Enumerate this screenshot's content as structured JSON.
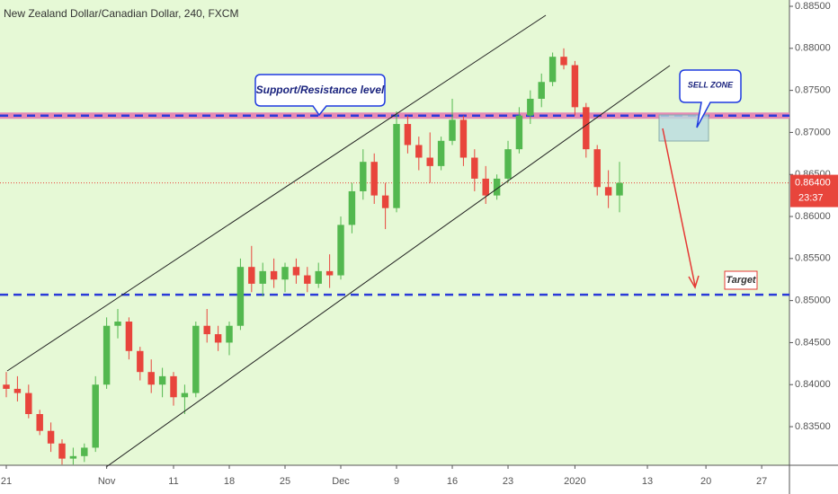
{
  "chart_data": {
    "type": "candlestick",
    "title": "New Zealand Dollar/Canadian Dollar, 240, FXCM",
    "x": [
      0,
      1,
      2,
      3,
      4,
      5,
      6,
      7,
      8,
      9,
      10,
      11,
      12,
      13,
      14,
      15,
      16,
      17,
      18,
      19,
      20,
      21,
      22,
      23,
      24,
      25,
      26,
      27,
      28,
      29,
      30,
      31,
      32,
      33,
      34,
      35,
      36,
      37,
      38,
      39,
      40,
      41,
      42,
      43,
      44,
      45,
      46,
      47,
      48,
      49,
      50,
      51,
      52,
      53,
      54,
      55
    ],
    "open": [
      0.84,
      0.8395,
      0.839,
      0.8365,
      0.8345,
      0.833,
      0.8312,
      0.8315,
      0.8325,
      0.84,
      0.847,
      0.8475,
      0.844,
      0.8415,
      0.84,
      0.841,
      0.8385,
      0.839,
      0.847,
      0.846,
      0.845,
      0.847,
      0.854,
      0.852,
      0.8535,
      0.8525,
      0.854,
      0.853,
      0.852,
      0.8535,
      0.853,
      0.859,
      0.863,
      0.8665,
      0.8625,
      0.861,
      0.871,
      0.8685,
      0.867,
      0.866,
      0.869,
      0.8715,
      0.867,
      0.8645,
      0.8625,
      0.8645,
      0.868,
      0.872,
      0.874,
      0.876,
      0.879,
      0.878,
      0.873,
      0.868,
      0.8635,
      0.8625
    ],
    "high": [
      0.8415,
      0.841,
      0.84,
      0.837,
      0.8355,
      0.8335,
      0.8325,
      0.833,
      0.841,
      0.848,
      0.849,
      0.848,
      0.8445,
      0.843,
      0.842,
      0.8415,
      0.84,
      0.8475,
      0.849,
      0.847,
      0.8475,
      0.855,
      0.8565,
      0.8545,
      0.855,
      0.8545,
      0.855,
      0.854,
      0.8545,
      0.8555,
      0.86,
      0.864,
      0.868,
      0.8675,
      0.864,
      0.8725,
      0.872,
      0.8695,
      0.87,
      0.8695,
      0.874,
      0.872,
      0.868,
      0.866,
      0.865,
      0.869,
      0.873,
      0.875,
      0.877,
      0.8795,
      0.88,
      0.8785,
      0.8735,
      0.8685,
      0.8655,
      0.8665
    ],
    "low": [
      0.8385,
      0.838,
      0.836,
      0.834,
      0.832,
      0.8305,
      0.8305,
      0.8308,
      0.832,
      0.8395,
      0.8455,
      0.843,
      0.8405,
      0.839,
      0.8385,
      0.8375,
      0.8365,
      0.8385,
      0.845,
      0.844,
      0.8435,
      0.8465,
      0.851,
      0.8505,
      0.8515,
      0.851,
      0.852,
      0.851,
      0.8515,
      0.8515,
      0.8525,
      0.858,
      0.862,
      0.8615,
      0.8585,
      0.8605,
      0.8675,
      0.8655,
      0.864,
      0.8655,
      0.8685,
      0.866,
      0.863,
      0.8615,
      0.862,
      0.864,
      0.8675,
      0.871,
      0.873,
      0.8755,
      0.8775,
      0.872,
      0.867,
      0.8625,
      0.861,
      0.8605
    ],
    "close": [
      0.8395,
      0.839,
      0.8365,
      0.8345,
      0.833,
      0.8312,
      0.8315,
      0.8325,
      0.84,
      0.847,
      0.8475,
      0.844,
      0.8415,
      0.84,
      0.841,
      0.8385,
      0.839,
      0.847,
      0.846,
      0.845,
      0.847,
      0.854,
      0.852,
      0.8535,
      0.8525,
      0.854,
      0.853,
      0.852,
      0.8535,
      0.853,
      0.859,
      0.863,
      0.8665,
      0.8625,
      0.861,
      0.871,
      0.8685,
      0.867,
      0.866,
      0.869,
      0.8715,
      0.867,
      0.8645,
      0.8625,
      0.8645,
      0.868,
      0.872,
      0.874,
      0.876,
      0.879,
      0.878,
      0.873,
      0.868,
      0.8635,
      0.8625,
      0.864
    ],
    "up_color": "#53b84f",
    "down_color": "#e8453c",
    "xlim": [
      -0.565,
      70.24
    ],
    "xticks": [
      {
        "value": 0,
        "label": "21"
      },
      {
        "value": 9,
        "label": "Nov"
      },
      {
        "value": 15,
        "label": "11"
      },
      {
        "value": 20,
        "label": "18"
      },
      {
        "value": 25,
        "label": "25"
      },
      {
        "value": 30,
        "label": "Dec"
      },
      {
        "value": 35,
        "label": "9"
      },
      {
        "value": 40,
        "label": "16"
      },
      {
        "value": 45,
        "label": "23"
      },
      {
        "value": 51,
        "label": "2020"
      },
      {
        "value": 57.5,
        "label": "13"
      },
      {
        "value": 62.75,
        "label": "20"
      },
      {
        "value": 67.75,
        "label": "27"
      }
    ],
    "ylim": [
      0.83041,
      0.88575
    ],
    "yticks": [
      {
        "value": 0.835,
        "label": "0.83500"
      },
      {
        "value": 0.84,
        "label": "0.84000"
      },
      {
        "value": 0.845,
        "label": "0.84500"
      },
      {
        "value": 0.85,
        "label": "0.85000"
      },
      {
        "value": 0.855,
        "label": "0.85500"
      },
      {
        "value": 0.86,
        "label": "0.86000"
      },
      {
        "value": 0.865,
        "label": "0.86500"
      },
      {
        "value": 0.87,
        "label": "0.87000"
      },
      {
        "value": 0.875,
        "label": "0.87500"
      },
      {
        "value": 0.88,
        "label": "0.88000"
      },
      {
        "value": 0.885,
        "label": "0.88500"
      }
    ],
    "grid": false,
    "price_label": {
      "value": 0.864,
      "label": "0.86400"
    },
    "countdown": "23:37",
    "resistance_level": 0.872,
    "target_level": 0.8507,
    "annotations": [
      "Support/Resistance level",
      "SELL ZONE",
      "Target"
    ]
  }
}
